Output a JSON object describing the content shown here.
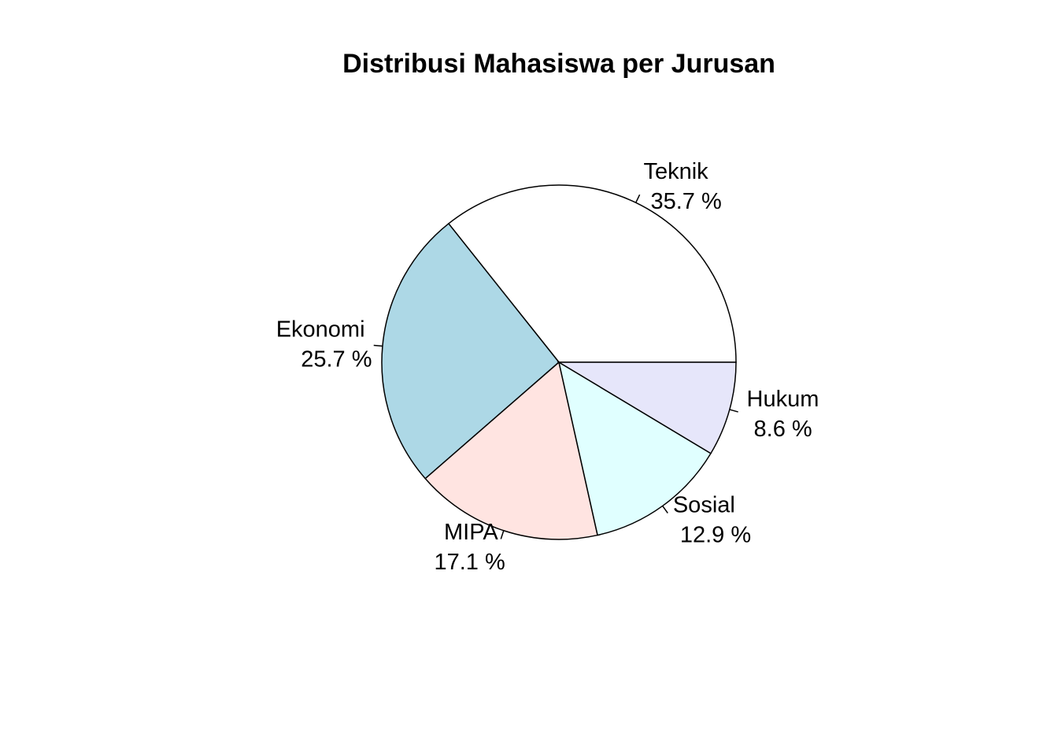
{
  "chart_data": {
    "type": "pie",
    "title": "Distribusi Mahasiswa per Jurusan",
    "slices": [
      {
        "name": "Teknik",
        "percent": 35.7,
        "percent_label": "35.7 %",
        "color": "#ffffff"
      },
      {
        "name": "Ekonomi",
        "percent": 25.7,
        "percent_label": "25.7 %",
        "color": "#add8e6"
      },
      {
        "name": "MIPA",
        "percent": 17.1,
        "percent_label": "17.1 %",
        "color": "#ffe4e1"
      },
      {
        "name": "Sosial",
        "percent": 12.9,
        "percent_label": "12.9 %",
        "color": "#e0ffff"
      },
      {
        "name": "Hukum",
        "percent": 8.6,
        "percent_label": "8.6 %",
        "color": "#e6e6fa"
      }
    ],
    "start_angle": "right (3 o'clock)",
    "direction": "counterclockwise",
    "legend": "none"
  }
}
